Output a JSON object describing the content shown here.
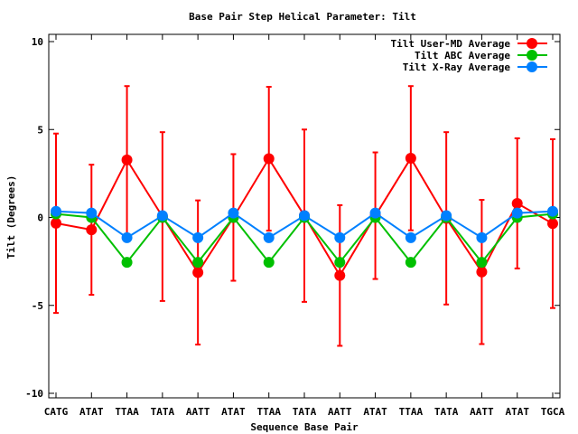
{
  "chart_data": {
    "type": "line",
    "title": "Base Pair Step Helical Parameter: Tilt",
    "xlabel": "Sequence Base Pair",
    "ylabel": "Tilt (Degrees)",
    "ylim": [
      -10,
      10
    ],
    "yticks": [
      10,
      5,
      0,
      -5,
      -10
    ],
    "ytick_labels": [
      "10",
      "5",
      "0",
      "-5",
      "-10"
    ],
    "grid": false,
    "legend_position": "top-right",
    "categories": [
      "CATG",
      "ATAT",
      "TTAA",
      "TATA",
      "AATT",
      "ATAT",
      "TTAA",
      "TATA",
      "AATT",
      "ATAT",
      "TTAA",
      "TATA",
      "AATT",
      "ATAT",
      "TGCA"
    ],
    "series": [
      {
        "name": "Tilt User-MD Average",
        "color": "#ff0000",
        "values": [
          -0.33,
          -0.7,
          3.27,
          0.05,
          -3.13,
          0.0,
          3.34,
          0.1,
          -3.3,
          0.1,
          3.37,
          -0.05,
          -3.1,
          0.8,
          -0.35
        ],
        "errors": [
          5.1,
          3.7,
          4.2,
          4.8,
          4.1,
          3.6,
          4.09,
          4.9,
          4.0,
          3.6,
          4.1,
          4.9,
          4.1,
          3.7,
          4.8
        ]
      },
      {
        "name": "Tilt ABC Average",
        "color": "#00c000",
        "values": [
          0.2,
          0.0,
          -2.55,
          0.0,
          -2.55,
          0.0,
          -2.55,
          0.0,
          -2.55,
          0.0,
          -2.55,
          0.0,
          -2.55,
          0.0,
          0.2
        ]
      },
      {
        "name": "Tilt X-Ray Average",
        "color": "#0080ff",
        "values": [
          0.35,
          0.25,
          -1.15,
          0.1,
          -1.15,
          0.25,
          -1.15,
          0.1,
          -1.15,
          0.25,
          -1.15,
          0.1,
          -1.15,
          0.25,
          0.35
        ]
      }
    ]
  }
}
